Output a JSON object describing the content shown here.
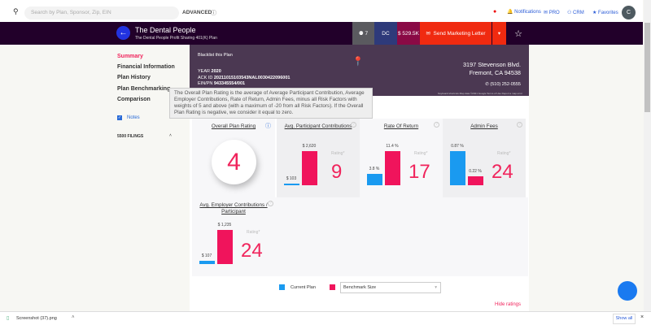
{
  "topbar": {
    "search_placeholder": "Search by Plan, Sponsor, Zip, EIN",
    "advanced": "ADVANCED",
    "notifications": "Notifications",
    "pro": "PRO",
    "crm": "CRM",
    "favorites": "Favorites",
    "avatar": "C"
  },
  "header": {
    "title": "The Dental People",
    "subtitle": "The Dental People Profit Sharing 401(K) Plan",
    "participants": "7",
    "state": "DC",
    "assets": "$ 529.5K",
    "send_letter": "Send Marketing Letter"
  },
  "map": {
    "blacklist": "Blacklist this Plan",
    "year_label": "YEAR",
    "year": "2020",
    "ack_label": "ACK ID",
    "ack": "20211015103543NAL0030422096001",
    "ein_label": "EIN/PN",
    "ein": "943345554/001",
    "address1": "3197 Stevenson Blvd.",
    "address2": "Fremont, CA 94538",
    "phone": "(510) 252-0555",
    "attribution": "Keyboard shortcuts   Map data ©2021 Google   Terms of Use   Report a map error"
  },
  "sidebar": {
    "items": [
      "Summary",
      "Financial Information",
      "Plan History",
      "Plan Benchmarking",
      "Comparison"
    ],
    "notes": "Notes",
    "filings": "5500 FILINGS"
  },
  "tooltip": "The Overall Plan Rating is the average of Average Participant Contribution, Average Employer Contributions, Rate of Return, Admin Fees, minus all Risk Factors with weights of 5 and above (with a maximum of -20 from all Risk Factors). If the Overall Plan Rating is negative, we consider it equal to zero.",
  "cards": {
    "overall": {
      "title": "Overall Plan Rating",
      "rating": "4"
    },
    "participant": {
      "title": "Avg. Participant Contributions",
      "current": "$ 103",
      "benchmark": "$ 2,620",
      "current_value": 103,
      "benchmark_value": 2620,
      "rating_label": "Rating*",
      "rating": "9"
    },
    "return": {
      "title": "Rate Of Return",
      "current": "3.8 %",
      "benchmark": "11.4 %",
      "current_value": 3.8,
      "benchmark_value": 11.4,
      "rating_label": "Rating*",
      "rating": "17"
    },
    "fees": {
      "title": "Admin Fees",
      "current": "0.87 %",
      "benchmark": "0.22 %",
      "current_value": 0.87,
      "benchmark_value": 0.22,
      "rating_label": "Rating*",
      "rating": "24"
    },
    "employer": {
      "title": "Avg. Employer Contributions / Participant",
      "current": "$ 107",
      "benchmark": "$ 1,235",
      "current_value": 107,
      "benchmark_value": 1235,
      "rating_label": "Rating*",
      "rating": "24"
    }
  },
  "legend": {
    "current": "Current Plan",
    "benchmark_select": "Benchmark Size",
    "current_color": "#1a9af0",
    "benchmark_color": "#f0145c"
  },
  "hide_ratings": "Hide ratings",
  "download": {
    "file": "Screenshot (37).png",
    "show_all": "Show all"
  }
}
